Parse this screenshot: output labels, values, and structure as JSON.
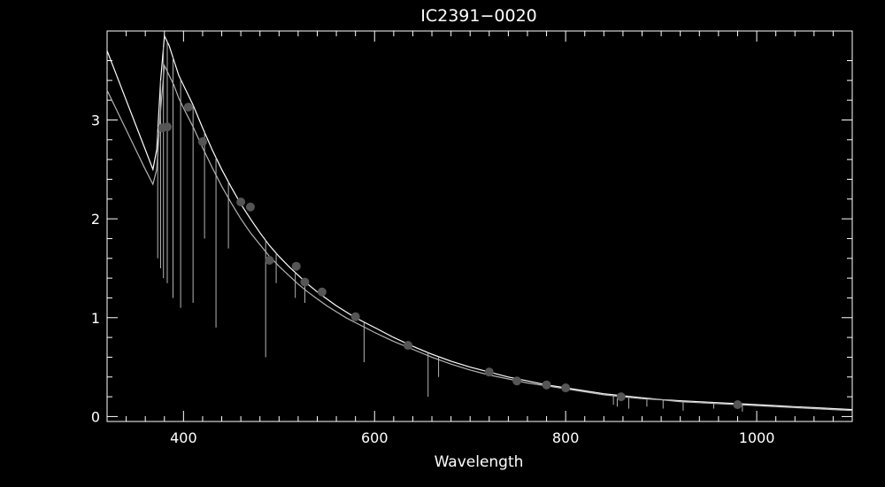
{
  "chart_data": {
    "type": "line",
    "title": "IC2391−0020",
    "xlabel": "Wavelength",
    "ylabel": "",
    "xlim": [
      320,
      1100
    ],
    "ylim": [
      -0.05,
      3.9
    ],
    "grid": false,
    "x_ticks": [
      400,
      600,
      800,
      1000
    ],
    "x_tick_labels": [
      "400",
      "600",
      "800",
      "1000"
    ],
    "y_ticks": [
      0,
      1,
      2,
      3
    ],
    "y_tick_labels": [
      "0",
      "1",
      "2",
      "3"
    ],
    "colors": {
      "background": "#000000",
      "axes": "#ffffff",
      "spectrum_1": "#ffffff",
      "spectrum_2": "#b4b4b4",
      "points": "#555555"
    },
    "series": [
      {
        "x": [
          320,
          330,
          340,
          350,
          360,
          368,
          372,
          376,
          380,
          385,
          390,
          395,
          400,
          410,
          420,
          430,
          440,
          450,
          460,
          470,
          480,
          490,
          500,
          510,
          520,
          530,
          540,
          550,
          560,
          570,
          580,
          590,
          600,
          620,
          640,
          660,
          680,
          700,
          720,
          740,
          760,
          780,
          800,
          820,
          840,
          860,
          880,
          900,
          920,
          940,
          960,
          980,
          1000,
          1020,
          1040,
          1060,
          1080,
          1100
        ],
        "y": [
          3.7,
          3.45,
          3.2,
          2.95,
          2.7,
          2.5,
          2.7,
          3.4,
          3.85,
          3.75,
          3.6,
          3.45,
          3.35,
          3.15,
          2.92,
          2.7,
          2.5,
          2.32,
          2.15,
          2.0,
          1.86,
          1.73,
          1.62,
          1.52,
          1.43,
          1.34,
          1.26,
          1.19,
          1.12,
          1.06,
          1.0,
          0.95,
          0.9,
          0.8,
          0.71,
          0.63,
          0.56,
          0.5,
          0.45,
          0.4,
          0.36,
          0.32,
          0.29,
          0.26,
          0.23,
          0.21,
          0.19,
          0.17,
          0.16,
          0.15,
          0.14,
          0.13,
          0.12,
          0.11,
          0.1,
          0.09,
          0.08,
          0.07
        ]
      },
      {
        "x": [
          320,
          330,
          340,
          350,
          360,
          368,
          372,
          376,
          380,
          385,
          390,
          395,
          400,
          410,
          420,
          430,
          440,
          450,
          460,
          470,
          480,
          490,
          500,
          510,
          520,
          530,
          540,
          550,
          560,
          570,
          580,
          590,
          600,
          620,
          640,
          660,
          680,
          700,
          720,
          740,
          760,
          780,
          800,
          820,
          840,
          860,
          880,
          900,
          920,
          940,
          960,
          980,
          1000,
          1020,
          1040,
          1060,
          1080,
          1100
        ],
        "y": [
          3.3,
          3.1,
          2.9,
          2.7,
          2.5,
          2.35,
          2.5,
          3.1,
          3.55,
          3.45,
          3.35,
          3.22,
          3.12,
          2.93,
          2.72,
          2.52,
          2.33,
          2.16,
          2.0,
          1.86,
          1.74,
          1.62,
          1.52,
          1.43,
          1.34,
          1.26,
          1.19,
          1.12,
          1.06,
          1.0,
          0.95,
          0.9,
          0.85,
          0.76,
          0.68,
          0.6,
          0.53,
          0.47,
          0.42,
          0.38,
          0.34,
          0.31,
          0.28,
          0.25,
          0.22,
          0.2,
          0.18,
          0.17,
          0.15,
          0.14,
          0.13,
          0.12,
          0.11,
          0.1,
          0.09,
          0.08,
          0.07,
          0.06
        ]
      }
    ],
    "absorption_lines": [
      {
        "x": 373,
        "y_bottom": 1.6
      },
      {
        "x": 376,
        "y_bottom": 1.5
      },
      {
        "x": 379,
        "y_bottom": 1.4
      },
      {
        "x": 383,
        "y_bottom": 1.35
      },
      {
        "x": 389,
        "y_bottom": 1.2
      },
      {
        "x": 397,
        "y_bottom": 1.1
      },
      {
        "x": 410,
        "y_bottom": 1.15
      },
      {
        "x": 422,
        "y_bottom": 1.8
      },
      {
        "x": 434,
        "y_bottom": 0.9
      },
      {
        "x": 447,
        "y_bottom": 1.7
      },
      {
        "x": 486,
        "y_bottom": 0.6
      },
      {
        "x": 497,
        "y_bottom": 1.35
      },
      {
        "x": 517,
        "y_bottom": 1.2
      },
      {
        "x": 527,
        "y_bottom": 1.15
      },
      {
        "x": 589,
        "y_bottom": 0.55
      },
      {
        "x": 656,
        "y_bottom": 0.2
      },
      {
        "x": 667,
        "y_bottom": 0.4
      },
      {
        "x": 850,
        "y_bottom": 0.12
      },
      {
        "x": 854,
        "y_bottom": 0.1
      },
      {
        "x": 866,
        "y_bottom": 0.08
      },
      {
        "x": 885,
        "y_bottom": 0.1
      },
      {
        "x": 902,
        "y_bottom": 0.08
      },
      {
        "x": 923,
        "y_bottom": 0.06
      },
      {
        "x": 955,
        "y_bottom": 0.08
      },
      {
        "x": 985,
        "y_bottom": 0.05
      }
    ],
    "points": [
      {
        "x": 378,
        "y": 2.92
      },
      {
        "x": 383,
        "y": 2.93
      },
      {
        "x": 405,
        "y": 3.13
      },
      {
        "x": 420,
        "y": 2.78
      },
      {
        "x": 460,
        "y": 2.17
      },
      {
        "x": 470,
        "y": 2.12
      },
      {
        "x": 490,
        "y": 1.58
      },
      {
        "x": 518,
        "y": 1.52
      },
      {
        "x": 527,
        "y": 1.36
      },
      {
        "x": 545,
        "y": 1.26
      },
      {
        "x": 580,
        "y": 1.01
      },
      {
        "x": 635,
        "y": 0.72
      },
      {
        "x": 720,
        "y": 0.45
      },
      {
        "x": 749,
        "y": 0.36
      },
      {
        "x": 780,
        "y": 0.32
      },
      {
        "x": 800,
        "y": 0.29
      },
      {
        "x": 858,
        "y": 0.2
      },
      {
        "x": 980,
        "y": 0.12
      }
    ]
  }
}
